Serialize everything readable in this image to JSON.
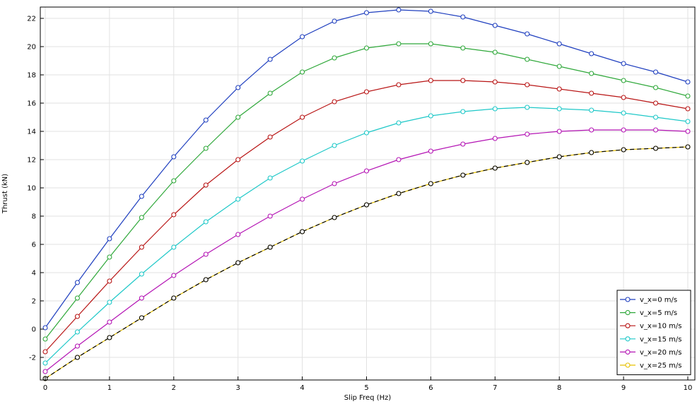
{
  "chart_data": {
    "type": "line",
    "title": "",
    "xlabel": "Slip Freq (Hz)",
    "ylabel": "Thrust (kN)",
    "xlim": [
      0,
      10
    ],
    "ylim": [
      -3.6,
      22.8
    ],
    "x_ticks": [
      0,
      1,
      2,
      3,
      4,
      5,
      6,
      7,
      8,
      9,
      10
    ],
    "y_ticks": [
      -2,
      0,
      2,
      4,
      6,
      8,
      10,
      12,
      14,
      16,
      18,
      20,
      22
    ],
    "grid": true,
    "legend_position": "bottom-right",
    "marker": "open-circle",
    "x": [
      0,
      0.5,
      1,
      1.5,
      2,
      2.5,
      3,
      3.5,
      4,
      4.5,
      5,
      5.5,
      6,
      6.5,
      7,
      7.5,
      8,
      8.5,
      9,
      9.5,
      10
    ],
    "series": [
      {
        "name": "v_x=0 m/s",
        "color": "#1f3fbf",
        "values": [
          0.1,
          3.3,
          6.4,
          9.4,
          12.2,
          14.8,
          17.1,
          19.1,
          20.7,
          21.8,
          22.4,
          22.6,
          22.5,
          22.1,
          21.5,
          20.9,
          20.2,
          19.5,
          18.8,
          18.2,
          17.5
        ]
      },
      {
        "name": "v_x=5 m/s",
        "color": "#2fa83a",
        "values": [
          -0.7,
          2.2,
          5.1,
          7.9,
          10.5,
          12.8,
          15.0,
          16.7,
          18.2,
          19.2,
          19.9,
          20.2,
          20.2,
          19.9,
          19.6,
          19.1,
          18.6,
          18.1,
          17.6,
          17.1,
          16.5
        ]
      },
      {
        "name": "v_x=10 m/s",
        "color": "#b81414",
        "values": [
          -1.6,
          0.9,
          3.4,
          5.8,
          8.1,
          10.2,
          12.0,
          13.6,
          15.0,
          16.1,
          16.8,
          17.3,
          17.6,
          17.6,
          17.5,
          17.3,
          17.0,
          16.7,
          16.4,
          16.0,
          15.6
        ]
      },
      {
        "name": "v_x=15 m/s",
        "color": "#1ec8c8",
        "values": [
          -2.4,
          -0.2,
          1.9,
          3.9,
          5.8,
          7.6,
          9.2,
          10.7,
          11.9,
          13.0,
          13.9,
          14.6,
          15.1,
          15.4,
          15.6,
          15.7,
          15.6,
          15.5,
          15.3,
          15.0,
          14.7
        ]
      },
      {
        "name": "v_x=20 m/s",
        "color": "#b414b4",
        "values": [
          -3.0,
          -1.2,
          0.5,
          2.2,
          3.8,
          5.3,
          6.7,
          8.0,
          9.2,
          10.3,
          11.2,
          12.0,
          12.6,
          13.1,
          13.5,
          13.8,
          14.0,
          14.1,
          14.1,
          14.1,
          14.0
        ]
      },
      {
        "name": "v_x=25 m/s",
        "color": "#e6c000",
        "values": [
          -3.5,
          -2.0,
          -0.6,
          0.8,
          2.2,
          3.5,
          4.7,
          5.8,
          6.9,
          7.9,
          8.8,
          9.6,
          10.3,
          10.9,
          11.4,
          11.8,
          12.2,
          12.5,
          12.7,
          12.8,
          12.9
        ]
      },
      {
        "name": "",
        "color": "#000000",
        "dashed": true,
        "values": [
          -3.5,
          -2.0,
          -0.6,
          0.8,
          2.2,
          3.5,
          4.7,
          5.8,
          6.9,
          7.9,
          8.8,
          9.6,
          10.3,
          10.9,
          11.4,
          11.8,
          12.2,
          12.5,
          12.7,
          12.8,
          12.9
        ]
      }
    ]
  }
}
